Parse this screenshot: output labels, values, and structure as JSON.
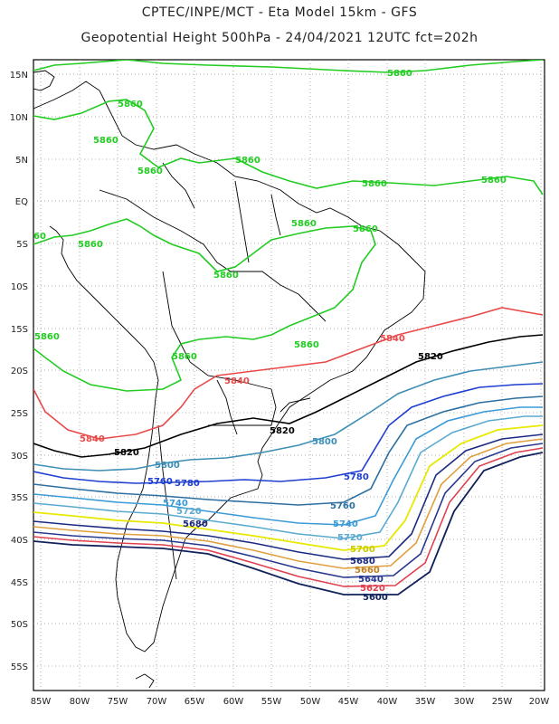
{
  "title_line1": "CPTEC/INPE/MCT  -   Eta Model 15km  -  GFS",
  "title_line2": "Geopotential Height 500hPa  -  24/04/2021 12UTC fct=202h",
  "lat_ticks": [
    "15N",
    "10N",
    "5N",
    "EQ",
    "5S",
    "10S",
    "15S",
    "20S",
    "25S",
    "30S",
    "35S",
    "40S",
    "45S",
    "50S",
    "55S"
  ],
  "lon_ticks": [
    "85W",
    "80W",
    "75W",
    "70W",
    "65W",
    "60W",
    "55W",
    "50W",
    "45W",
    "40W",
    "35W",
    "30W",
    "25W",
    "20W"
  ],
  "colors": {
    "c5860": "#22cc22",
    "c5840": "#e84a4a",
    "c5820": "#000000",
    "c5800": "#3d8fb5",
    "c5780": "#1f3fd0",
    "c5760": "#2c6fa0",
    "c5740": "#3b9ad8",
    "c5720": "#5aaad0",
    "c5700": "#e8e800",
    "c5680": "#1a2a80",
    "c5660": "#e0a040",
    "c5640": "#283890",
    "c5620": "#e04050",
    "c5600": "#10205a"
  },
  "contour_labels": {
    "l5860": "5860",
    "l5840": "5840",
    "l5820": "5820",
    "l5800": "5800",
    "l5780": "5780",
    "l5760": "5760",
    "l5740": "5740",
    "l5720": "5720",
    "l5700": "5700",
    "l5680": "5680",
    "l5660": "5660",
    "l5640": "5640",
    "l5620": "5620",
    "l5600": "5600",
    "l60": "60"
  }
}
